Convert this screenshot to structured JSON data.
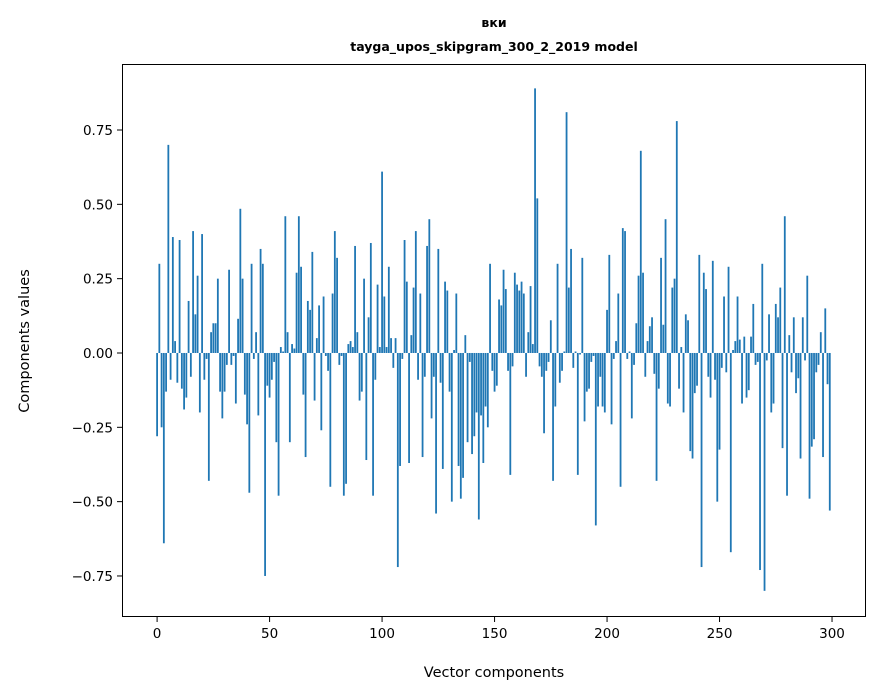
{
  "chart_data": {
    "type": "bar",
    "title": "вки",
    "subtitle": "tayga_upos_skipgram_300_2_2019 model",
    "xlabel": "Vector components",
    "ylabel": "Components values",
    "xlim": [
      -15.6,
      315.1
    ],
    "ylim": [
      -0.888,
      0.972
    ],
    "xticks": [
      0,
      50,
      100,
      150,
      200,
      250,
      300
    ],
    "xtick_labels": [
      "0",
      "50",
      "100",
      "150",
      "200",
      "250",
      "300"
    ],
    "yticks": [
      -0.75,
      -0.5,
      -0.25,
      0,
      0.25,
      0.5,
      0.75
    ],
    "ytick_labels": [
      "−0.75",
      "−0.50",
      "−0.25",
      "0.00",
      "0.25",
      "0.50",
      "0.75"
    ],
    "grid": false,
    "bar_color": "#1f77b4",
    "values": [
      -0.28,
      0.3,
      -0.25,
      -0.64,
      -0.13,
      0.7,
      -0.09,
      0.39,
      0.04,
      -0.1,
      0.38,
      -0.12,
      -0.19,
      -0.15,
      0.175,
      -0.08,
      0.41,
      0.13,
      0.26,
      -0.2,
      0.4,
      -0.09,
      -0.02,
      -0.43,
      0.07,
      0.1,
      0.1,
      0.25,
      -0.13,
      -0.22,
      -0.13,
      -0.04,
      0.28,
      -0.04,
      -0.01,
      -0.17,
      0.115,
      0.485,
      0.25,
      -0.14,
      -0.24,
      -0.47,
      0.3,
      -0.02,
      0.07,
      -0.21,
      0.35,
      0.3,
      -0.75,
      -0.11,
      -0.15,
      -0.09,
      -0.03,
      -0.3,
      -0.48,
      0.02,
      0.005,
      0.46,
      0.07,
      -0.3,
      0.03,
      0.015,
      0.27,
      0.46,
      0.29,
      -0.14,
      -0.35,
      0.175,
      0.145,
      0.34,
      -0.16,
      0.05,
      0.16,
      -0.26,
      0.19,
      -0.01,
      -0.06,
      -0.45,
      0.2,
      0.41,
      0.32,
      -0.04,
      -0.01,
      -0.48,
      -0.44,
      0.03,
      0.04,
      0.02,
      0.36,
      0.07,
      -0.16,
      -0.13,
      0.25,
      -0.36,
      0.12,
      0.37,
      -0.48,
      -0.09,
      0.23,
      0.02,
      0.61,
      0.19,
      0.02,
      0.29,
      0.05,
      -0.05,
      0.05,
      -0.72,
      -0.38,
      -0.02,
      0.38,
      0.24,
      -0.37,
      0.06,
      0.22,
      0.41,
      -0.09,
      0.2,
      -0.35,
      -0.08,
      0.36,
      0.45,
      -0.22,
      -0.08,
      -0.54,
      0.35,
      -0.1,
      -0.39,
      0.24,
      0.21,
      -0.13,
      -0.5,
      0.01,
      0.2,
      -0.38,
      -0.49,
      -0.42,
      0.06,
      -0.3,
      -0.03,
      -0.34,
      -0.28,
      -0.2,
      -0.56,
      -0.21,
      -0.37,
      -0.18,
      -0.25,
      0.3,
      -0.06,
      -0.13,
      -0.11,
      0.18,
      0.16,
      0.28,
      0.215,
      -0.06,
      -0.41,
      -0.045,
      0.27,
      0.23,
      0.21,
      0.24,
      0.2,
      -0.08,
      0.07,
      0.225,
      0.03,
      0.89,
      0.52,
      -0.045,
      -0.08,
      -0.27,
      -0.06,
      -0.03,
      0.11,
      -0.43,
      -0.18,
      0.3,
      -0.1,
      -0.06,
      0.005,
      0.81,
      0.22,
      0.35,
      -0.05,
      0.005,
      -0.41,
      -0.005,
      0.32,
      -0.23,
      -0.13,
      -0.12,
      -0.03,
      -0.01,
      -0.58,
      -0.18,
      -0.08,
      -0.18,
      -0.2,
      0.145,
      0.33,
      -0.24,
      -0.02,
      0.04,
      0.2,
      -0.45,
      0.42,
      0.41,
      -0.02,
      0.005,
      -0.22,
      -0.04,
      0.1,
      0.26,
      0.68,
      0.27,
      -0.08,
      0.04,
      0.09,
      0.12,
      -0.07,
      -0.43,
      -0.12,
      0.32,
      0.095,
      0.45,
      -0.17,
      -0.18,
      0.22,
      0.25,
      0.78,
      -0.12,
      0.02,
      -0.2,
      0.13,
      0.11,
      -0.33,
      -0.355,
      -0.135,
      -0.11,
      0.33,
      -0.72,
      0.27,
      0.215,
      -0.08,
      -0.15,
      0.31,
      -0.09,
      -0.5,
      -0.325,
      -0.05,
      0.19,
      -0.065,
      0.29,
      -0.67,
      0.01,
      0.04,
      0.19,
      0.045,
      -0.17,
      0.055,
      -0.15,
      -0.125,
      0.055,
      0.165,
      -0.04,
      -0.03,
      -0.73,
      0.3,
      -0.8,
      -0.025,
      0.13,
      -0.2,
      -0.17,
      0.165,
      0.12,
      0.22,
      -0.32,
      0.46,
      -0.48,
      0.06,
      -0.065,
      0.12,
      -0.135,
      -0.085,
      -0.355,
      0.12,
      -0.025,
      0.26,
      -0.49,
      -0.315,
      -0.29,
      -0.065,
      -0.04,
      0.07,
      -0.35,
      0.15,
      -0.105,
      -0.53
    ]
  }
}
